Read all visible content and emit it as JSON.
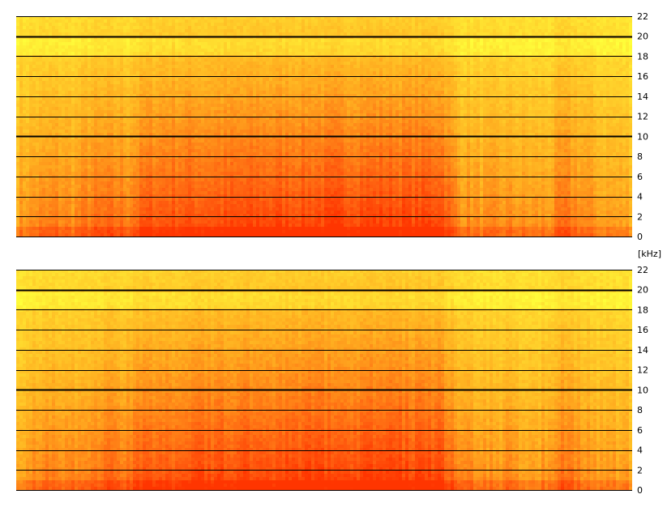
{
  "chart_data": {
    "type": "heatmap",
    "description_of_layout": "",
    "y_unit": "[kHz]",
    "colors": {
      "quiet": "#ffff3a",
      "mid": "#ffb020",
      "loud": "#ff6010",
      "peak": "#ff3500",
      "gridline": "#000000",
      "background": "#ffffff"
    },
    "time_profile": [
      {
        "t": 0.0,
        "e": 0.55
      },
      {
        "t": 0.03,
        "e": 0.62
      },
      {
        "t": 0.06,
        "e": 0.66
      },
      {
        "t": 0.09,
        "e": 0.62
      },
      {
        "t": 0.12,
        "e": 0.72
      },
      {
        "t": 0.15,
        "e": 0.74
      },
      {
        "t": 0.18,
        "e": 0.7
      },
      {
        "t": 0.21,
        "e": 0.86
      },
      {
        "t": 0.25,
        "e": 0.88
      },
      {
        "t": 0.3,
        "e": 0.89
      },
      {
        "t": 0.35,
        "e": 0.9
      },
      {
        "t": 0.4,
        "e": 0.92
      },
      {
        "t": 0.45,
        "e": 0.93
      },
      {
        "t": 0.5,
        "e": 0.94
      },
      {
        "t": 0.55,
        "e": 0.95
      },
      {
        "t": 0.6,
        "e": 0.95
      },
      {
        "t": 0.66,
        "e": 0.93
      },
      {
        "t": 0.69,
        "e": 0.96
      },
      {
        "t": 0.72,
        "e": 0.62
      },
      {
        "t": 0.76,
        "e": 0.58
      },
      {
        "t": 0.8,
        "e": 0.6
      },
      {
        "t": 0.84,
        "e": 0.56
      },
      {
        "t": 0.87,
        "e": 0.58
      },
      {
        "t": 0.89,
        "e": 0.72
      },
      {
        "t": 0.92,
        "e": 0.64
      },
      {
        "t": 0.95,
        "e": 0.55
      },
      {
        "t": 1.0,
        "e": 0.5
      }
    ],
    "channels": [
      {
        "name": "",
        "ylim": [
          0,
          22
        ],
        "ticks": [
          {
            "value": 22,
            "label": "22",
            "major": false
          },
          {
            "value": 20,
            "label": "20",
            "major": true
          },
          {
            "value": 18,
            "label": "18",
            "major": false
          },
          {
            "value": 16,
            "label": "16",
            "major": false
          },
          {
            "value": 14,
            "label": "14",
            "major": false
          },
          {
            "value": 12,
            "label": "12",
            "major": false
          },
          {
            "value": 10,
            "label": "10",
            "major": true
          },
          {
            "value": 8,
            "label": "8",
            "major": false
          },
          {
            "value": 6,
            "label": "6",
            "major": false
          },
          {
            "value": 4,
            "label": "4",
            "major": false
          },
          {
            "value": 2,
            "label": "2",
            "major": false
          },
          {
            "value": 0,
            "label": "0",
            "major": false
          }
        ]
      },
      {
        "name": "",
        "ylim": [
          0,
          22
        ],
        "ticks": [
          {
            "value": 22,
            "label": "22",
            "major": false
          },
          {
            "value": 20,
            "label": "20",
            "major": true
          },
          {
            "value": 18,
            "label": "18",
            "major": false
          },
          {
            "value": 16,
            "label": "16",
            "major": false
          },
          {
            "value": 14,
            "label": "14",
            "major": false
          },
          {
            "value": 12,
            "label": "12",
            "major": false
          },
          {
            "value": 10,
            "label": "10",
            "major": true
          },
          {
            "value": 8,
            "label": "8",
            "major": false
          },
          {
            "value": 6,
            "label": "6",
            "major": false
          },
          {
            "value": 4,
            "label": "4",
            "major": false
          },
          {
            "value": 2,
            "label": "2",
            "major": false
          },
          {
            "value": 0,
            "label": "0",
            "major": false
          }
        ]
      }
    ]
  }
}
